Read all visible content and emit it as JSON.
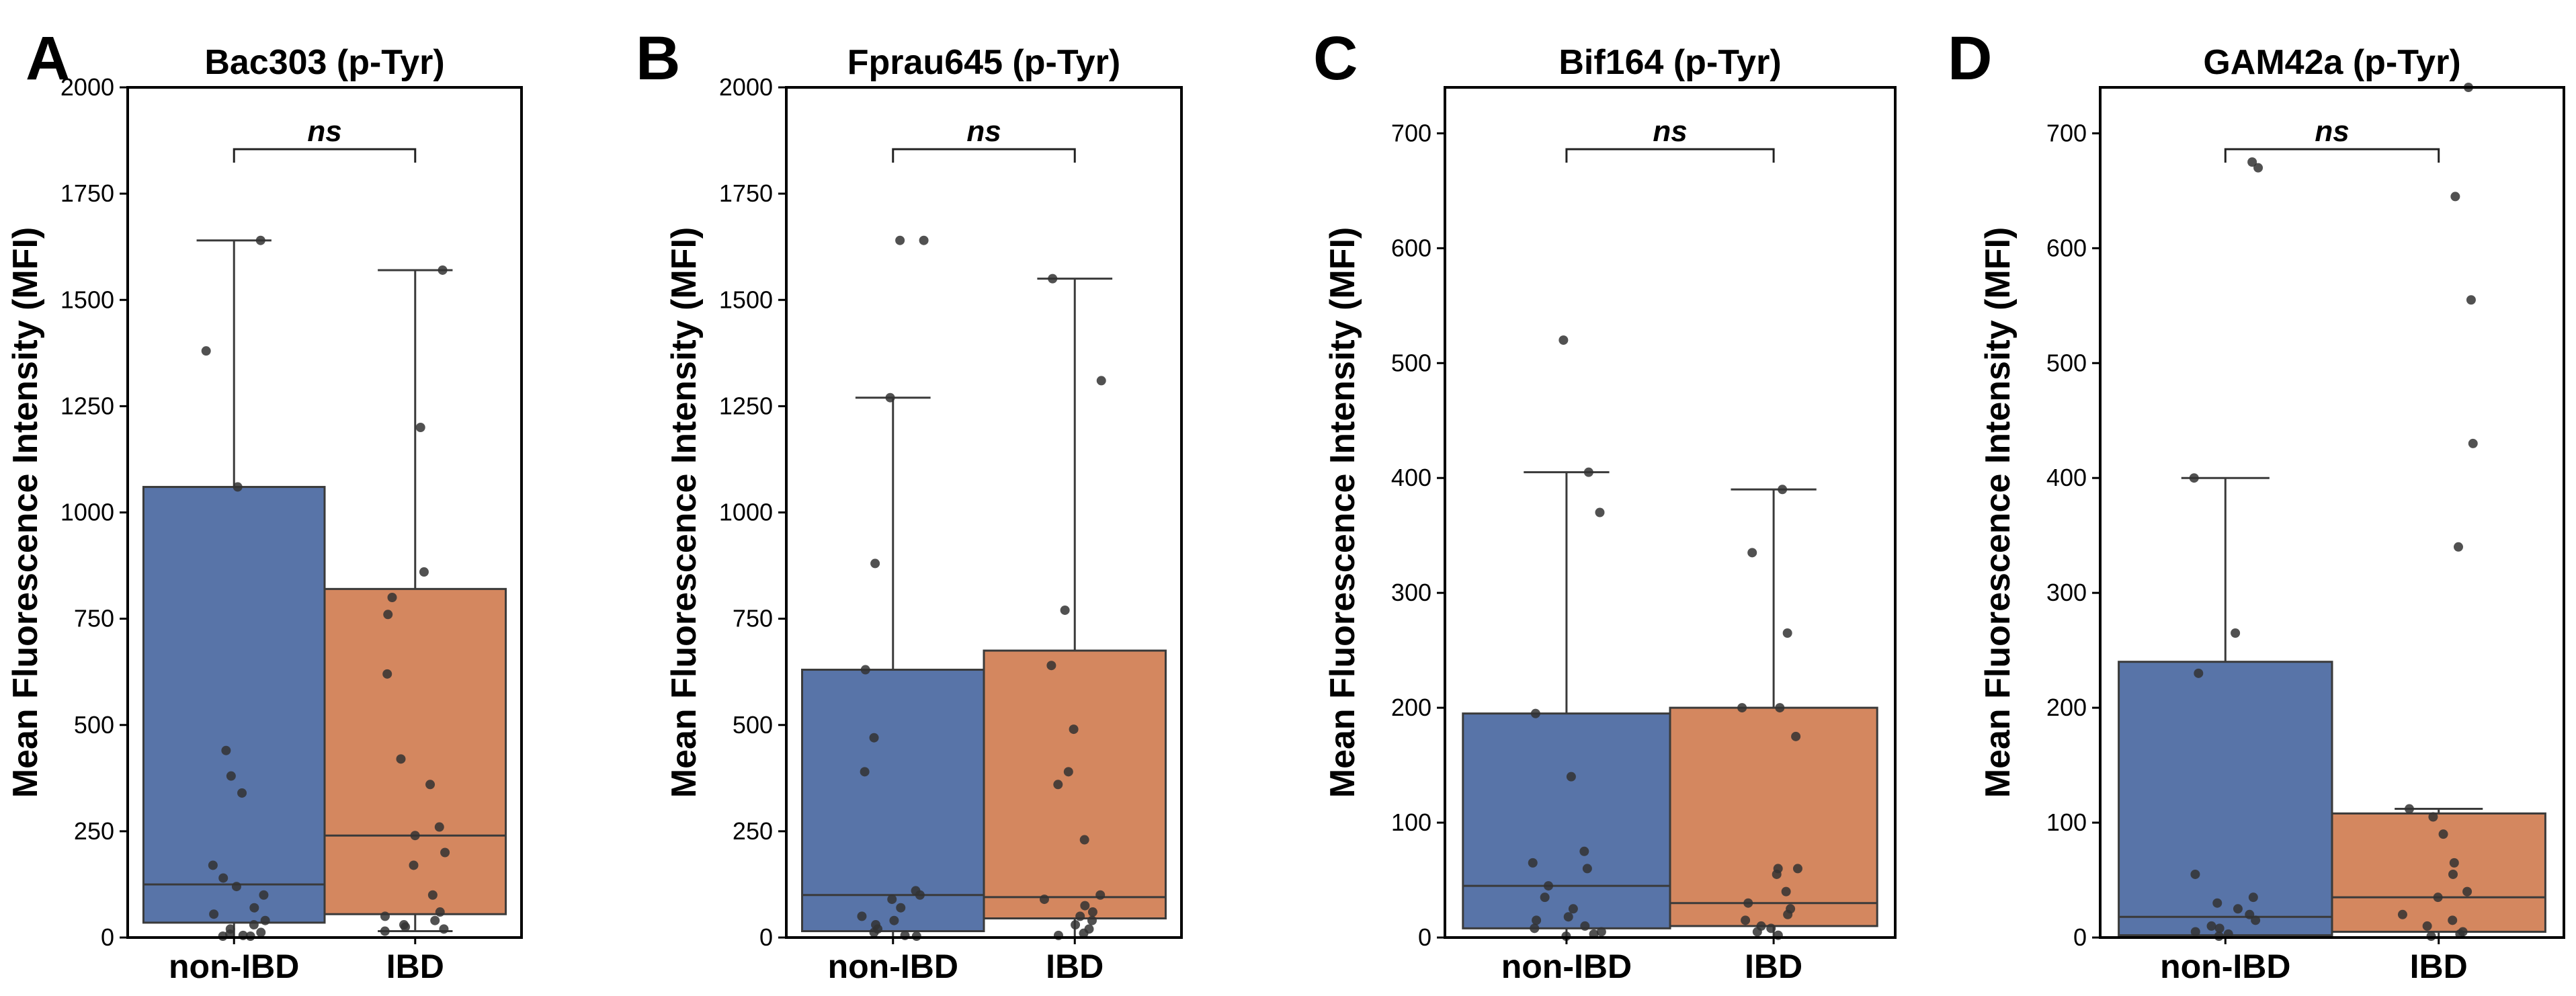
{
  "chart_data": [
    {
      "type": "box",
      "panel_letter": "A",
      "title": "Bac303 (p-Tyr)",
      "ylabel": "Mean Fluorescence Intensity (MFI)",
      "ylim": [
        0,
        2000
      ],
      "yticks": [
        0,
        250,
        500,
        750,
        1000,
        1250,
        1500,
        1750,
        2000
      ],
      "significance": "ns",
      "categories": [
        "non-IBD",
        "IBD"
      ],
      "groups": [
        {
          "category": "non-IBD",
          "color": "#5874a8",
          "q1": 35,
          "median": 125,
          "q3": 1060,
          "whisker_low": 0,
          "whisker_high": 1640,
          "points": [
            1640,
            1380,
            1060,
            440,
            380,
            340,
            170,
            140,
            120,
            100,
            70,
            55,
            40,
            30,
            20,
            12,
            8,
            5,
            3,
            2
          ]
        },
        {
          "category": "IBD",
          "color": "#d4875f",
          "q1": 55,
          "median": 240,
          "q3": 820,
          "whisker_low": 15,
          "whisker_high": 1570,
          "points": [
            1570,
            1200,
            860,
            800,
            760,
            620,
            420,
            360,
            260,
            240,
            200,
            170,
            100,
            60,
            50,
            40,
            30,
            25,
            20,
            15
          ]
        }
      ]
    },
    {
      "type": "box",
      "panel_letter": "B",
      "title": "Fprau645 (p-Tyr)",
      "ylabel": "Mean Fluorescence Intensity (MFI)",
      "ylim": [
        0,
        2000
      ],
      "yticks": [
        0,
        250,
        500,
        750,
        1000,
        1250,
        1500,
        1750,
        2000
      ],
      "significance": "ns",
      "categories": [
        "non-IBD",
        "IBD"
      ],
      "groups": [
        {
          "category": "non-IBD",
          "color": "#5874a8",
          "q1": 15,
          "median": 100,
          "q3": 630,
          "whisker_low": 0,
          "whisker_high": 1270,
          "points": [
            1640,
            1640,
            1270,
            880,
            630,
            470,
            390,
            110,
            100,
            90,
            70,
            50,
            40,
            30,
            20,
            12,
            5,
            3
          ]
        },
        {
          "category": "IBD",
          "color": "#d4875f",
          "q1": 45,
          "median": 95,
          "q3": 675,
          "whisker_low": 0,
          "whisker_high": 1550,
          "points": [
            1550,
            1310,
            770,
            640,
            490,
            390,
            360,
            230,
            100,
            90,
            75,
            60,
            50,
            40,
            30,
            20,
            10,
            5
          ]
        }
      ]
    },
    {
      "type": "box",
      "panel_letter": "C",
      "title": "Bif164 (p-Tyr)",
      "ylabel": "Mean Fluorescence Intensity (MFI)",
      "ylim": [
        0,
        740
      ],
      "yticks": [
        0,
        100,
        200,
        300,
        400,
        500,
        600,
        700
      ],
      "significance": "ns",
      "categories": [
        "non-IBD",
        "IBD"
      ],
      "groups": [
        {
          "category": "non-IBD",
          "color": "#5874a8",
          "q1": 8,
          "median": 45,
          "q3": 195,
          "whisker_low": 0,
          "whisker_high": 405,
          "points": [
            520,
            405,
            370,
            195,
            140,
            75,
            65,
            60,
            45,
            35,
            25,
            18,
            15,
            10,
            8,
            5,
            3,
            1
          ]
        },
        {
          "category": "IBD",
          "color": "#d4875f",
          "q1": 10,
          "median": 30,
          "q3": 200,
          "whisker_low": 0,
          "whisker_high": 390,
          "points": [
            390,
            335,
            265,
            200,
            200,
            175,
            60,
            60,
            55,
            40,
            30,
            25,
            20,
            15,
            10,
            8,
            5,
            2
          ]
        }
      ]
    },
    {
      "type": "box",
      "panel_letter": "D",
      "title": "GAM42a (p-Tyr)",
      "ylabel": "Mean Fluorescence Intensity (MFI)",
      "ylim": [
        0,
        740
      ],
      "yticks": [
        0,
        100,
        200,
        300,
        400,
        500,
        600,
        700
      ],
      "significance": "ns",
      "categories": [
        "non-IBD",
        "IBD"
      ],
      "groups": [
        {
          "category": "non-IBD",
          "color": "#5874a8",
          "q1": 2,
          "median": 18,
          "q3": 240,
          "whisker_low": 0,
          "whisker_high": 400,
          "points": [
            675,
            670,
            400,
            265,
            230,
            55,
            35,
            30,
            25,
            20,
            15,
            10,
            8,
            5,
            3,
            1
          ]
        },
        {
          "category": "IBD",
          "color": "#d4875f",
          "q1": 5,
          "median": 35,
          "q3": 108,
          "whisker_low": 0,
          "whisker_high": 112,
          "points": [
            740,
            645,
            555,
            430,
            340,
            112,
            105,
            90,
            65,
            55,
            40,
            35,
            20,
            15,
            10,
            5,
            3,
            1
          ]
        }
      ]
    }
  ]
}
